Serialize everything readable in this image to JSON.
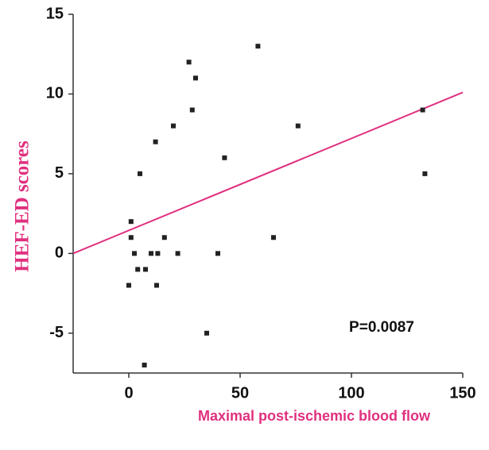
{
  "chart_data": {
    "type": "scatter",
    "xlabel": "Maximal post-ischemic blood flow",
    "ylabel": "HEF-ED scores",
    "annotation": "P=0.0087",
    "x": [
      0,
      1,
      1,
      2.5,
      4,
      5,
      7,
      7.5,
      10,
      12,
      12.5,
      13,
      16,
      20,
      22,
      27,
      28.5,
      30,
      35,
      40,
      43,
      58,
      65,
      76,
      132,
      133
    ],
    "values": [
      -2,
      2,
      1,
      0,
      -1,
      5,
      -7,
      -1,
      0,
      7,
      -2,
      0,
      1,
      8,
      0,
      12,
      9,
      11,
      -5,
      0,
      6,
      13,
      1,
      8,
      9,
      5
    ],
    "color": "#222222",
    "fit_line": {
      "x": [
        -25,
        150
      ],
      "y": [
        0,
        10.1
      ],
      "color": "#e0307f"
    },
    "xlim": [
      -25,
      150
    ],
    "xticks": [
      0,
      50,
      100,
      150
    ],
    "ylim": [
      -7.5,
      15
    ],
    "yticks": [
      -5,
      0,
      5,
      10,
      15
    ]
  }
}
